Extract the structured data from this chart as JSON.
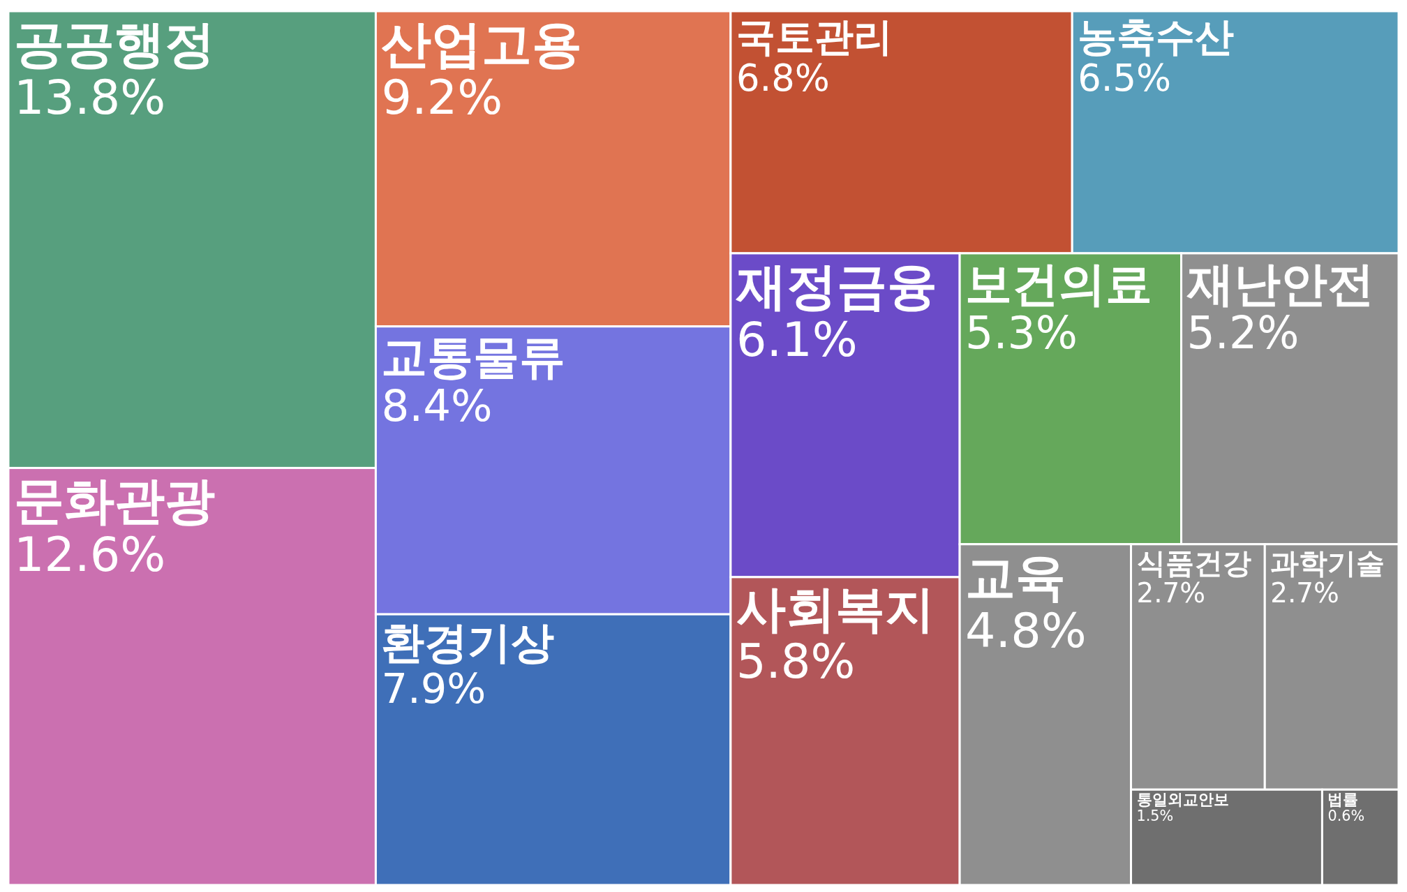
{
  "chart_data": {
    "type": "other",
    "categories": [
      "공공행정",
      "문화관광",
      "산업고용",
      "교통물류",
      "환경기상",
      "국토관리",
      "농축수산",
      "재정금융",
      "사회복지",
      "보건의료",
      "재난안전",
      "교육",
      "식품건강",
      "과학기술",
      "통일외교안보",
      "법률"
    ],
    "values": [
      13.8,
      12.6,
      9.2,
      8.4,
      7.9,
      6.8,
      6.5,
      6.1,
      5.8,
      5.3,
      5.2,
      4.8,
      2.7,
      2.7,
      1.5,
      0.6
    ],
    "value_labels": [
      "13.8%",
      "12.6%",
      "9.2%",
      "8.4%",
      "7.9%",
      "6.8%",
      "6.5%",
      "6.1%",
      "5.8%",
      "5.3%",
      "5.2%",
      "4.8%",
      "2.7%",
      "2.7%",
      "1.5%",
      "0.6%"
    ],
    "colors": [
      "#579f7e",
      "#cb70b0",
      "#e07452",
      "#7474e0",
      "#3f6fb8",
      "#c25133",
      "#579dba",
      "#6b4bc8",
      "#b25659",
      "#65a85b",
      "#8f8f8f",
      "#8f8f8f",
      "#8f8f8f",
      "#8f8f8f",
      "#6f6f6f",
      "#6f6f6f"
    ]
  }
}
